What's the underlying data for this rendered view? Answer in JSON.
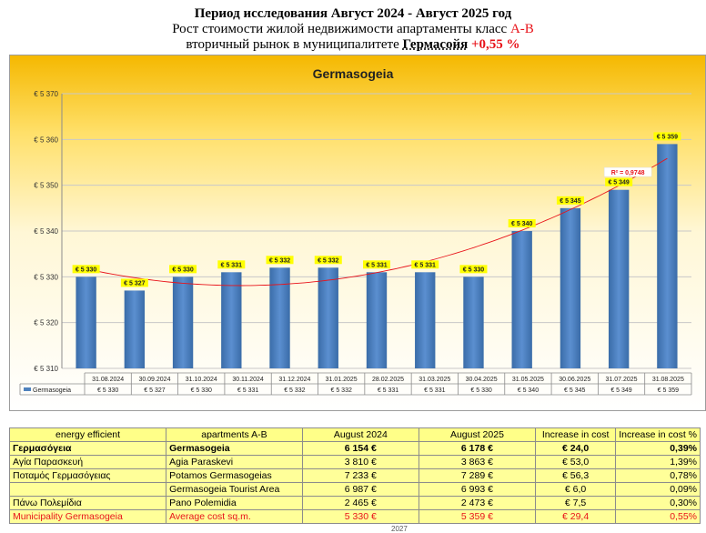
{
  "header": {
    "line1": "Период исследования Август 2024 - Август 2025 год",
    "line2_prefix": "Рост стоимости жилой недвижимости апартаменты класс ",
    "line2_class": "A-B",
    "line3_prefix": "вторичный рынок в муниципалитете ",
    "line3_city": "Гермасойя",
    "line3_change": "+0,55 %"
  },
  "chart_data": {
    "type": "bar",
    "title": "Germasogeia",
    "categories": [
      "31.08.2024",
      "30.09.2024",
      "31.10.2024",
      "30.11.2024",
      "31.12.2024",
      "31.01.2025",
      "28.02.2025",
      "31.03.2025",
      "30.04.2025",
      "31.05.2025",
      "30.06.2025",
      "31.07.2025",
      "31.08.2025"
    ],
    "series": [
      {
        "name": "Germasogeia",
        "values": [
          5330,
          5327,
          5330,
          5331,
          5332,
          5332,
          5331,
          5331,
          5330,
          5340,
          5345,
          5349,
          5359
        ]
      }
    ],
    "value_labels": [
      "€ 5 330",
      "€ 5 327",
      "€ 5 330",
      "€ 5 331",
      "€ 5 332",
      "€ 5 332",
      "€ 5 331",
      "€ 5 331",
      "€ 5 330",
      "€ 5 340",
      "€ 5 345",
      "€ 5 349",
      "€ 5 359"
    ],
    "ylim": [
      5310,
      5370
    ],
    "yticks": [
      5310,
      5320,
      5330,
      5340,
      5350,
      5360,
      5370
    ],
    "ytick_labels": [
      "€ 5 310",
      "€ 5 320",
      "€ 5 330",
      "€ 5 340",
      "€ 5 350",
      "€ 5 360",
      "€ 5 370"
    ],
    "trendline": {
      "type": "polynomial",
      "r2_label": "R² = 0,9748"
    },
    "colors": {
      "bar": "#4f81bd",
      "trend": "#e8131a",
      "label_bg": "#ffff00"
    },
    "grid": true,
    "legend": "bottom-left data table"
  },
  "table": {
    "headers": [
      "energy efficient",
      "apartments A-B",
      "August 2024",
      "August 2025",
      "Increase in cost",
      "Increase in cost  %"
    ],
    "rows": [
      [
        "Γερμασόγεια",
        "Germasogeia",
        "6 154 €",
        "6 178 €",
        "€ 24,0",
        "0,39%"
      ],
      [
        "Αγία Παρασκευή",
        "Agia Paraskevi",
        "3 810 €",
        "3 863 €",
        "€ 53,0",
        "1,39%"
      ],
      [
        "Ποταμός Γερμασόγειας",
        "Potamos Germasogeias",
        "7 233 €",
        "7 289 €",
        "€ 56,3",
        "0,78%"
      ],
      [
        "",
        "Germasogeia Tourist Area",
        "6 987 €",
        "6 993 €",
        "€ 6,0",
        "0,09%"
      ],
      [
        "Πάνω Πολεμίδια",
        "Pano Polemidia",
        "2 465 €",
        "2 473 €",
        "€ 7,5",
        "0,30%"
      ],
      [
        "Municipality Germasogeia",
        "Average cost sq.m.",
        "5 330 €",
        "5 359 €",
        "€ 29,4",
        "0,55%"
      ]
    ]
  },
  "footnote": "2027"
}
